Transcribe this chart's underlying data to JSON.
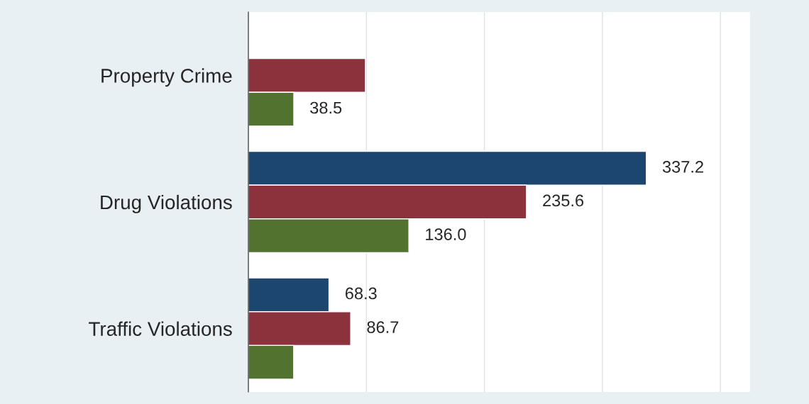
{
  "chart_data": {
    "type": "bar",
    "orientation": "horizontal",
    "categories": [
      "Property Crime",
      "Drug Violations",
      "Traffic Violations"
    ],
    "series": [
      {
        "color": "#1c4570",
        "values": [
          null,
          337.2,
          68.3
        ],
        "value_labels": [
          null,
          "337.2",
          "68.3"
        ]
      },
      {
        "color": "#8b323c",
        "values": [
          99.2,
          235.6,
          86.7
        ],
        "value_labels": [
          null,
          "235.6",
          "86.7"
        ]
      },
      {
        "color": "#52722f",
        "values": [
          38.5,
          136.0,
          38.4
        ],
        "value_labels": [
          "38.5",
          "136.0",
          null
        ]
      }
    ],
    "xlim": [
      0,
      425
    ],
    "xticks": [
      {
        "value": 0,
        "label": null
      },
      {
        "value": 100,
        "label": null
      },
      {
        "value": 200,
        "label": null
      },
      {
        "value": 300,
        "label": null
      },
      {
        "value": 400,
        "label": null
      }
    ],
    "grid": "x",
    "tick_labels": "y"
  }
}
